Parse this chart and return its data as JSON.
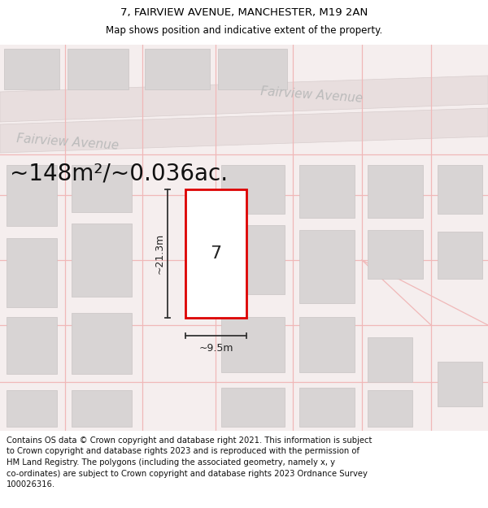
{
  "title_line1": "7, FAIRVIEW AVENUE, MANCHESTER, M19 2AN",
  "title_line2": "Map shows position and indicative extent of the property.",
  "area_text": "~148m²/~0.036ac.",
  "property_number": "7",
  "dim_height": "~21.3m",
  "dim_width": "~9.5m",
  "street_label_left": "Fairview Avenue",
  "street_label_right": "Fairview Avenue",
  "footer_lines": [
    "Contains OS data © Crown copyright and database right 2021. This information is subject",
    "to Crown copyright and database rights 2023 and is reproduced with the permission of",
    "HM Land Registry. The polygons (including the associated geometry, namely x, y",
    "co-ordinates) are subject to Crown copyright and database rights 2023 Ordnance Survey",
    "100026316."
  ],
  "map_bg": "#f5eeee",
  "road_fill": "#e8dede",
  "road_edge": "#d8cece",
  "plot_line_color": "#f0b8b8",
  "highlight_color": "#dd0000",
  "building_fill": "#d8d4d4",
  "building_edge": "#c8c4c4",
  "title_fontsize": 9.5,
  "subtitle_fontsize": 8.5,
  "area_fontsize": 20,
  "street_fontsize": 11,
  "number_fontsize": 16,
  "dim_fontsize": 9,
  "footer_fontsize": 7.2
}
